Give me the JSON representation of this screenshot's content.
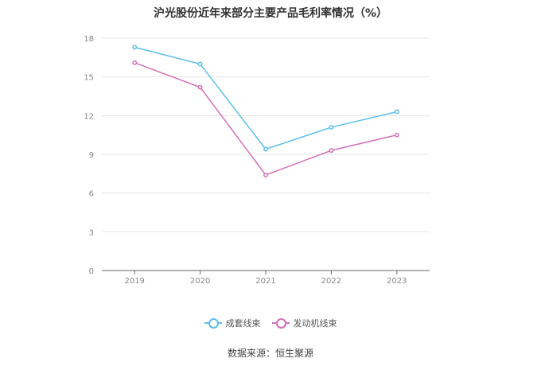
{
  "title": "沪光股份近年来部分主要产品毛利率情况（%）",
  "source": "数据来源：恒生聚源",
  "colors": {
    "grid": "#e6e6e6",
    "axis": "#666666",
    "tick_text": "#888888"
  },
  "chart_data": {
    "type": "line",
    "title": "沪光股份近年来部分主要产品毛利率情况（%）",
    "x": [
      "2019",
      "2020",
      "2021",
      "2022",
      "2023"
    ],
    "ylim": [
      0,
      18
    ],
    "yticks": [
      0,
      3,
      6,
      9,
      12,
      15,
      18
    ],
    "grid": true,
    "legend_position": "bottom-center",
    "series": [
      {
        "name": "成套线束",
        "color": "#5bc0eb",
        "values": [
          17.3,
          16.0,
          9.4,
          11.1,
          12.3
        ]
      },
      {
        "name": "发动机线束",
        "color": "#d36fb8",
        "values": [
          16.1,
          14.2,
          7.4,
          9.3,
          10.5
        ]
      }
    ]
  }
}
